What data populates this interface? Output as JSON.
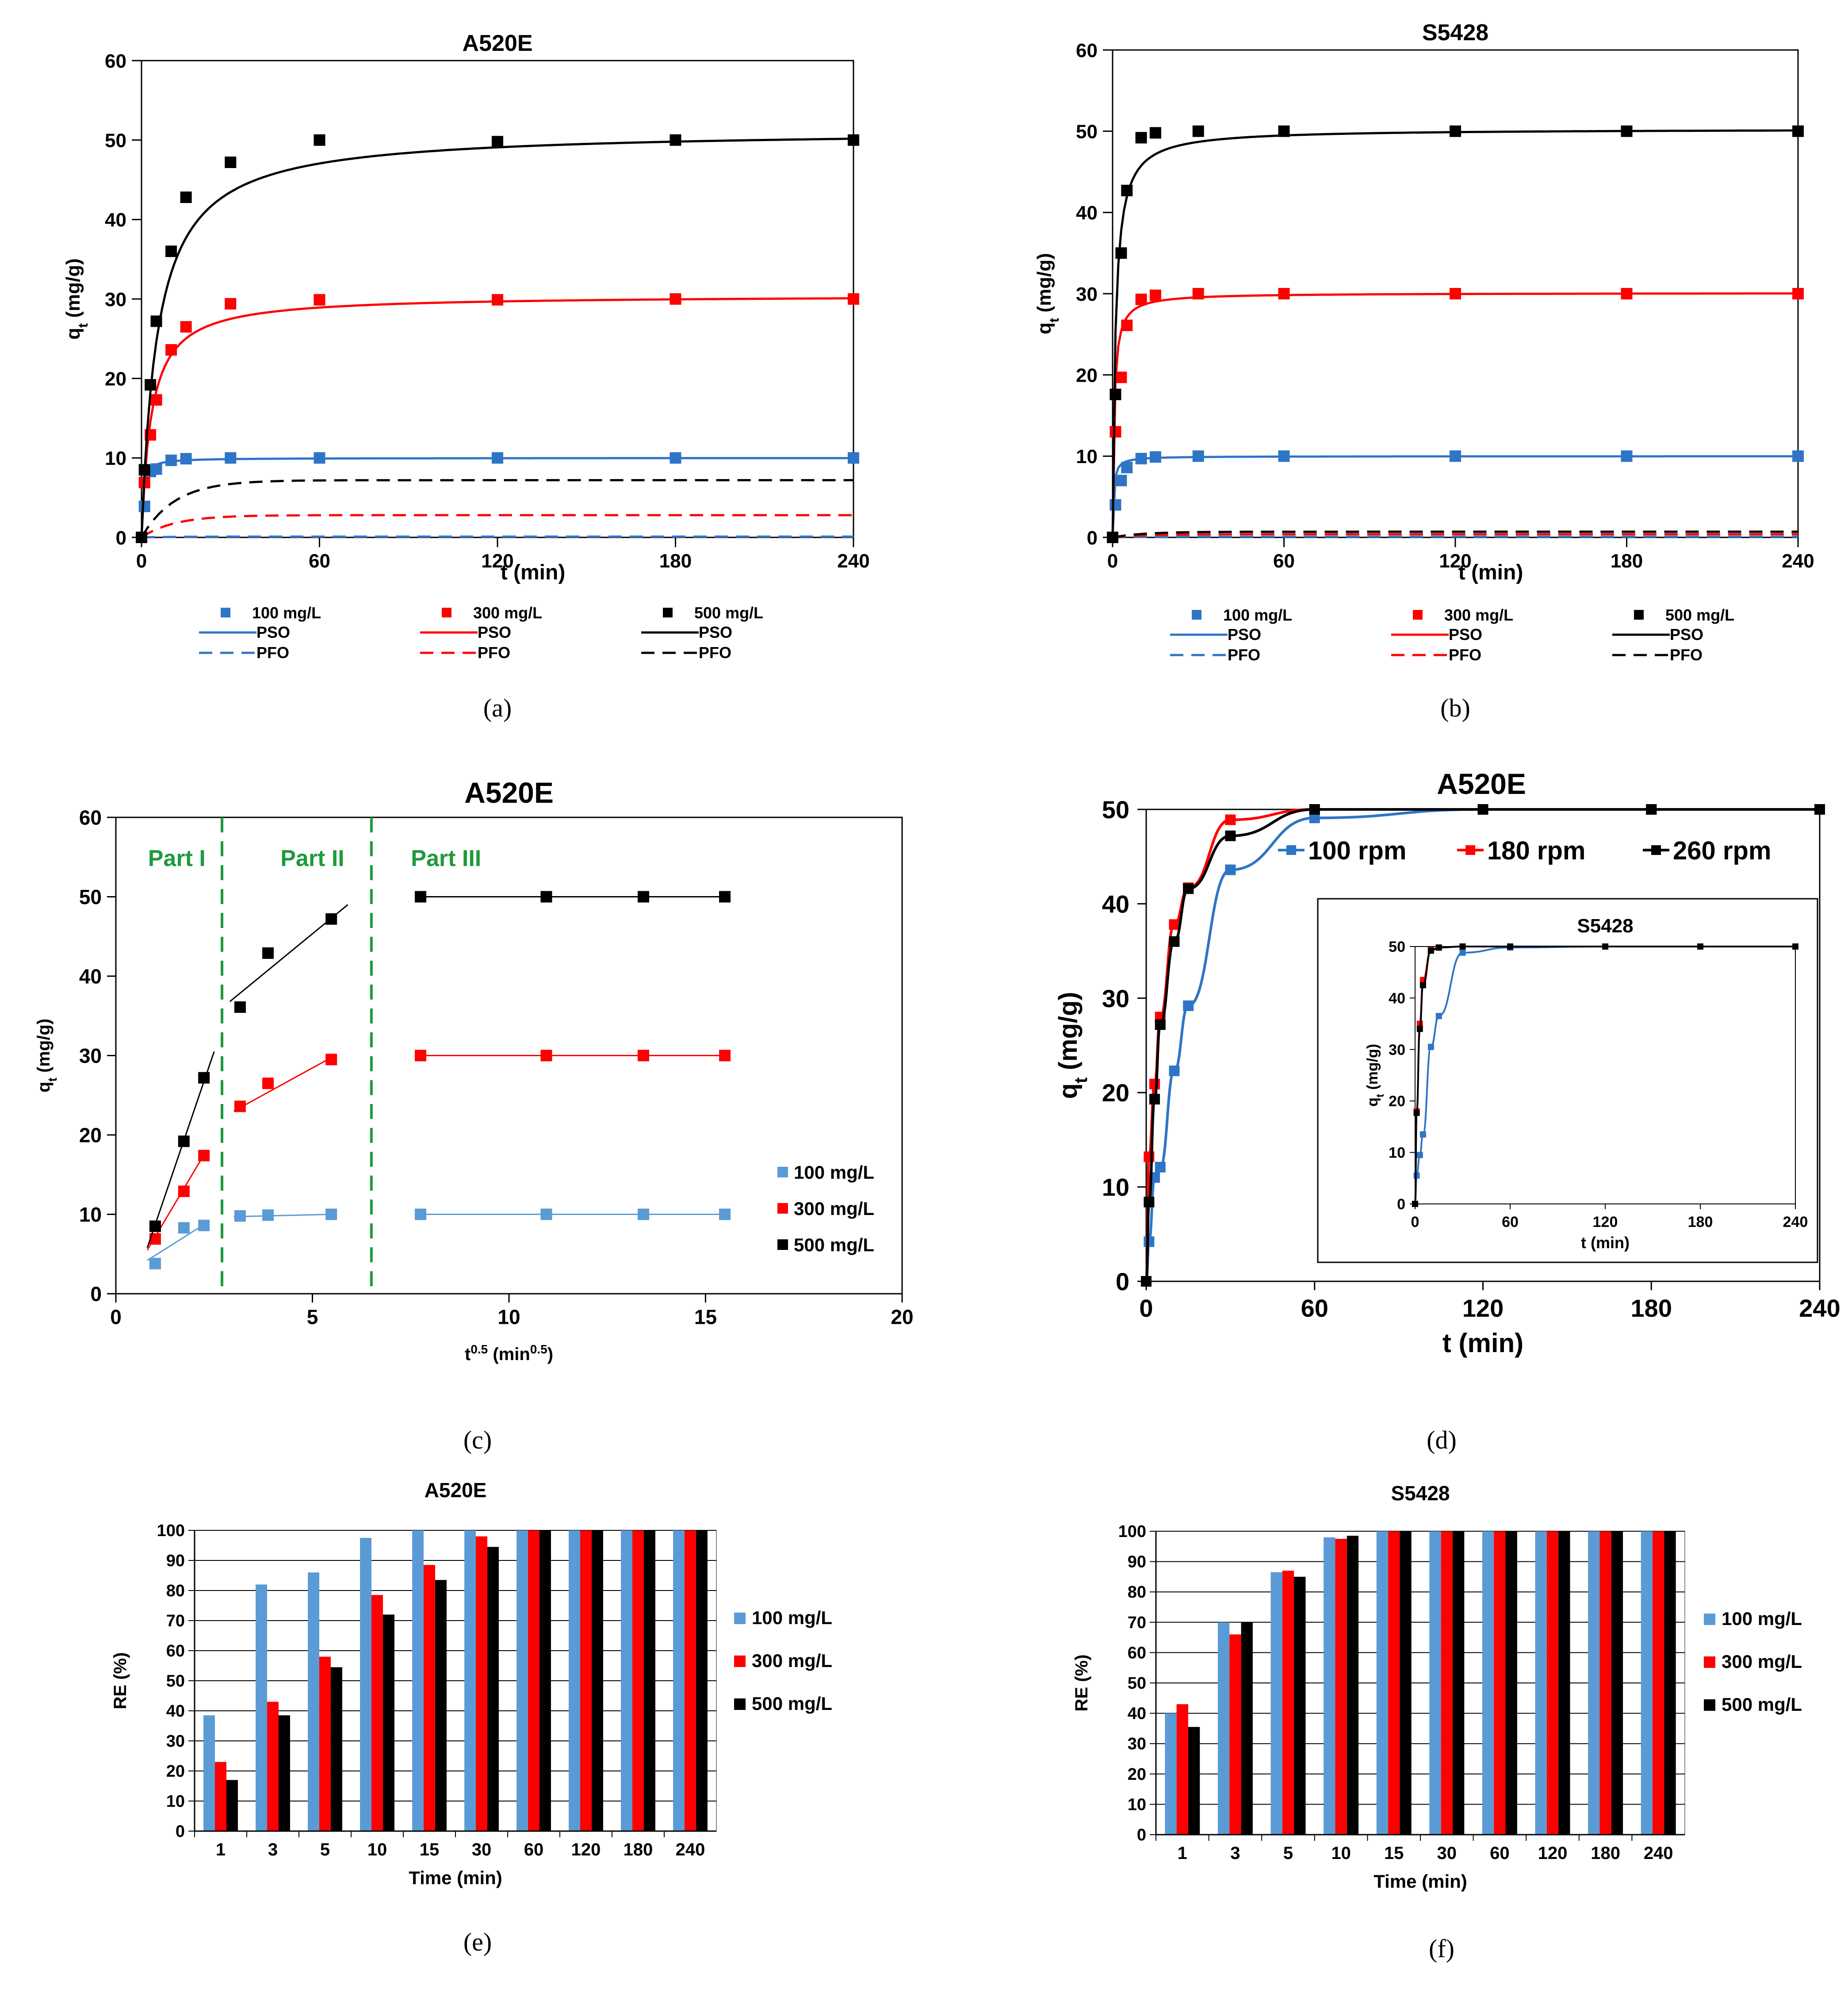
{
  "colors": {
    "blue": "#2e75c7",
    "red": "#ff0000",
    "black": "#000000",
    "lightblue": "#5b9bd5",
    "green": "#1f9a3a",
    "grid": "#000000"
  },
  "chart_data": [
    {
      "id": "a",
      "panel_label": "(a)",
      "type": "scatter",
      "title": "A520E",
      "xlabel": "t (min)",
      "ylabel": "qt (mg/g)",
      "ylabel_main": "q",
      "ylabel_sub": "t",
      "ylabel_tail": " (mg/g)",
      "xlim": [
        0,
        240
      ],
      "ylim": [
        0,
        60
      ],
      "xticks": [
        0,
        60,
        120,
        180,
        240
      ],
      "yticks": [
        0,
        10,
        20,
        30,
        40,
        50,
        60
      ],
      "x": [
        0,
        1,
        3,
        5,
        10,
        15,
        30,
        60,
        120,
        180,
        240
      ],
      "series": [
        {
          "name": "100 mg/L",
          "color": "blue",
          "values": [
            0,
            3.9,
            8.3,
            8.6,
            9.7,
            9.9,
            10,
            10,
            10,
            10,
            10
          ],
          "pso": {
            "qe": 10,
            "k": 0.22
          },
          "pfo": 0.1
        },
        {
          "name": "300 mg/L",
          "color": "red",
          "values": [
            0,
            6.9,
            12.9,
            17.3,
            23.6,
            26.5,
            29.4,
            29.9,
            29.9,
            30,
            30
          ],
          "pso": {
            "qe": 30.5,
            "k": 0.01
          },
          "pfo": 2.8
        },
        {
          "name": "500 mg/L",
          "color": "black",
          "values": [
            0,
            8.5,
            19.2,
            27.2,
            36,
            42.8,
            47.2,
            50,
            49.8,
            50,
            50
          ],
          "pso": {
            "qe": 51.3,
            "k": 0.0036
          },
          "pfo": 7.2
        }
      ],
      "legend": {
        "markers": [
          "100 mg/L",
          "300 mg/L",
          "500 mg/L"
        ],
        "pso": "PSO",
        "pfo": "PFO"
      }
    },
    {
      "id": "b",
      "panel_label": "(b)",
      "type": "scatter",
      "title": "S5428",
      "xlabel": "t (min)",
      "ylabel": "qt (mg/g)",
      "ylabel_main": "q",
      "ylabel_sub": "t",
      "ylabel_tail": " (mg/g)",
      "xlim": [
        0,
        240
      ],
      "ylim": [
        0,
        60
      ],
      "xticks": [
        0,
        60,
        120,
        180,
        240
      ],
      "yticks": [
        0,
        10,
        20,
        30,
        40,
        50,
        60
      ],
      "x": [
        0,
        1,
        3,
        5,
        10,
        15,
        30,
        60,
        120,
        180,
        240
      ],
      "series": [
        {
          "name": "100 mg/L",
          "color": "blue",
          "values": [
            0,
            4,
            7,
            8.6,
            9.7,
            9.9,
            10,
            10,
            10,
            10,
            10
          ],
          "pso": {
            "qe": 10,
            "k": 0.3
          },
          "pfo": 0.1
        },
        {
          "name": "300 mg/L",
          "color": "red",
          "values": [
            0,
            13,
            19.7,
            26.1,
            29.3,
            29.8,
            30,
            30,
            30,
            30,
            30
          ],
          "pso": {
            "qe": 30.1,
            "k": 0.06
          },
          "pfo": 0.4
        },
        {
          "name": "500 mg/L",
          "color": "black",
          "values": [
            0,
            17.6,
            35,
            42.7,
            49.2,
            49.8,
            50,
            50,
            50,
            50,
            50
          ],
          "pso": {
            "qe": 50.3,
            "k": 0.02
          },
          "pfo": 0.7
        }
      ],
      "legend": {
        "markers": [
          "100 mg/L",
          "300 mg/L",
          "500 mg/L"
        ],
        "pso": "PSO",
        "pfo": "PFO"
      }
    },
    {
      "id": "c",
      "panel_label": "(c)",
      "type": "scatter",
      "title": "A520E",
      "xlabel": "t0.5 (min0.5)",
      "xlabel_a": "t",
      "xlabel_b": "0.5",
      "xlabel_c": " (min",
      "xlabel_d": "0.5",
      "xlabel_e": ")",
      "ylabel": "qt (mg/g)",
      "ylabel_main": "q",
      "ylabel_sub": "t",
      "ylabel_tail": " (mg/g)",
      "xlim": [
        0,
        20
      ],
      "ylim": [
        0,
        60
      ],
      "xticks": [
        0,
        5,
        10,
        15,
        20
      ],
      "yticks": [
        0,
        10,
        20,
        30,
        40,
        50,
        60
      ],
      "parts": [
        "Part I",
        "Part II",
        "Part III"
      ],
      "part_dividers": [
        2.7,
        6.5
      ],
      "x": [
        1,
        1.73,
        2.24,
        3.16,
        3.87,
        5.48,
        7.75,
        10.95,
        13.42,
        15.49
      ],
      "series": [
        {
          "name": "100 mg/L",
          "color": "lightblue",
          "values": [
            3.8,
            8.3,
            8.6,
            9.8,
            9.9,
            10,
            10,
            10,
            10,
            10
          ]
        },
        {
          "name": "300 mg/L",
          "color": "red",
          "values": [
            6.9,
            12.9,
            17.4,
            23.6,
            26.5,
            29.5,
            30,
            30,
            30,
            30
          ]
        },
        {
          "name": "500 mg/L",
          "color": "black",
          "values": [
            8.5,
            19.2,
            27.2,
            36.1,
            42.9,
            47.2,
            50,
            50,
            50,
            50
          ]
        }
      ],
      "fits": {
        "part1": {
          "100 mg/L": [
            [
              0.8,
              4.2
            ],
            [
              2.3,
              8.9
            ]
          ],
          "300 mg/L": [
            [
              0.8,
              5.5
            ],
            [
              2.3,
              18
            ]
          ],
          "500 mg/L": [
            [
              0.8,
              5.8
            ],
            [
              2.5,
              30.5
            ]
          ]
        },
        "part2": {
          "100 mg/L": [
            [
              3.0,
              9.7
            ],
            [
              5.5,
              10
            ]
          ],
          "300 mg/L": [
            [
              3.0,
              23
            ],
            [
              5.5,
              29.8
            ]
          ],
          "500 mg/L": [
            [
              2.9,
              36.8
            ],
            [
              5.9,
              49
            ]
          ]
        }
      }
    },
    {
      "id": "d",
      "panel_label": "(d)",
      "type": "line",
      "title": "A520E",
      "xlabel": "t (min)",
      "ylabel": "qt (mg/g)",
      "ylabel_main": "q",
      "ylabel_sub": "t",
      "ylabel_tail": " (mg/g)",
      "xlim": [
        0,
        240
      ],
      "ylim": [
        0,
        50
      ],
      "xticks": [
        0,
        60,
        120,
        180,
        240
      ],
      "yticks": [
        0,
        10,
        20,
        30,
        40,
        50
      ],
      "x": [
        0,
        1,
        3,
        5,
        10,
        15,
        30,
        60,
        120,
        180,
        240
      ],
      "series": [
        {
          "name": "100 rpm",
          "color": "blue",
          "values": [
            0,
            4.2,
            11,
            12.1,
            22.3,
            29.2,
            43.6,
            49.1,
            50,
            50,
            50
          ]
        },
        {
          "name": "180 rpm",
          "color": "red",
          "values": [
            0,
            13.2,
            20.9,
            28,
            37.8,
            41.7,
            48.9,
            50,
            50,
            50,
            50
          ]
        },
        {
          "name": "260 rpm",
          "color": "black",
          "values": [
            0,
            8.4,
            19.3,
            27.2,
            36,
            41.6,
            47.2,
            50,
            50,
            50,
            50
          ]
        }
      ],
      "inset": {
        "title": "S5428",
        "xlabel": "t (min)",
        "ylabel": "qt (mg/g)",
        "xlim": [
          0,
          240
        ],
        "ylim": [
          0,
          50
        ],
        "xticks": [
          0,
          60,
          120,
          180,
          240
        ],
        "yticks": [
          0,
          10,
          20,
          30,
          40,
          50
        ],
        "x": [
          0,
          1,
          3,
          5,
          10,
          15,
          30,
          60,
          120,
          180,
          240
        ],
        "series": [
          {
            "name": "100 rpm",
            "color": "blue",
            "values": [
              0,
              5.5,
              9.5,
              13.5,
              30.5,
              36.5,
              48.8,
              49.8,
              50,
              50,
              50
            ]
          },
          {
            "name": "180 rpm",
            "color": "red",
            "values": [
              0,
              18,
              35,
              43.5,
              49.3,
              49.8,
              50,
              50,
              50,
              50,
              50
            ]
          },
          {
            "name": "260 rpm",
            "color": "black",
            "values": [
              0,
              17.7,
              34,
              42.5,
              49.2,
              49.8,
              50,
              50,
              50,
              50,
              50
            ]
          }
        ]
      }
    },
    {
      "id": "e",
      "panel_label": "(e)",
      "type": "bar",
      "title": "A520E",
      "xlabel": "Time (min)",
      "ylabel": "RE (%)",
      "ylim": [
        0,
        100
      ],
      "yticks": [
        0,
        10,
        20,
        30,
        40,
        50,
        60,
        70,
        80,
        90,
        100
      ],
      "categories": [
        "1",
        "3",
        "5",
        "10",
        "15",
        "30",
        "60",
        "120",
        "180",
        "240"
      ],
      "series": [
        {
          "name": "100 mg/L",
          "color": "lightblue",
          "values": [
            38.5,
            82,
            86,
            97.5,
            100,
            100,
            100,
            100,
            100,
            100
          ]
        },
        {
          "name": "300 mg/L",
          "color": "red",
          "values": [
            23,
            43,
            58,
            78.5,
            88.5,
            98,
            100,
            100,
            100,
            100
          ]
        },
        {
          "name": "500 mg/L",
          "color": "black",
          "values": [
            17,
            38.5,
            54.5,
            72,
            83.5,
            94.5,
            100,
            100,
            100,
            100
          ]
        }
      ]
    },
    {
      "id": "f",
      "panel_label": "(f)",
      "type": "bar",
      "title": "S5428",
      "xlabel": "Time (min)",
      "ylabel": "RE (%)",
      "ylim": [
        0,
        100
      ],
      "yticks": [
        0,
        10,
        20,
        30,
        40,
        50,
        60,
        70,
        80,
        90,
        100
      ],
      "categories": [
        "1",
        "3",
        "5",
        "10",
        "15",
        "30",
        "60",
        "120",
        "180",
        "240"
      ],
      "series": [
        {
          "name": "100 mg/L",
          "color": "lightblue",
          "values": [
            40,
            70,
            86.5,
            98,
            100,
            100,
            100,
            100,
            100,
            100
          ]
        },
        {
          "name": "300 mg/L",
          "color": "red",
          "values": [
            43,
            66,
            87,
            97.5,
            100,
            100,
            100,
            100,
            100,
            100
          ]
        },
        {
          "name": "500 mg/L",
          "color": "black",
          "values": [
            35.5,
            70,
            85,
            98.5,
            100,
            100,
            100,
            100,
            100,
            100
          ]
        }
      ]
    }
  ]
}
